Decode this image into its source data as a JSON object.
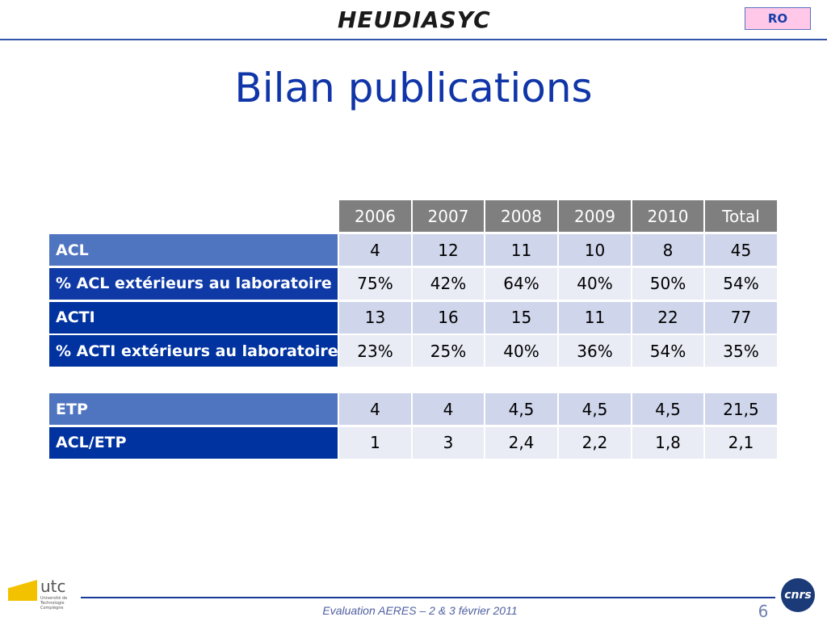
{
  "header": {
    "logo": "HEUDIASYC",
    "badge": "RO"
  },
  "title": "Bilan publications",
  "tables": [
    {
      "columns": [
        "2006",
        "2007",
        "2008",
        "2009",
        "2010",
        "Total"
      ],
      "rows": [
        [
          "ACL",
          "4",
          "12",
          "11",
          "10",
          "8",
          "45"
        ],
        [
          "% ACL extérieurs au laboratoire",
          "75%",
          "42%",
          "64%",
          "40%",
          "50%",
          "54%"
        ],
        [
          "ACTI",
          "13",
          "16",
          "15",
          "11",
          "22",
          "77"
        ],
        [
          "% ACTI extérieurs au laboratoire",
          "23%",
          "25%",
          "40%",
          "36%",
          "54%",
          "35%"
        ]
      ]
    },
    {
      "rows": [
        [
          "ETP",
          "4",
          "4",
          "4,5",
          "4,5",
          "4,5",
          "21,5"
        ],
        [
          "ACL/ETP",
          "1",
          "3",
          "2,4",
          "2,2",
          "1,8",
          "2,1"
        ]
      ]
    }
  ],
  "footer": {
    "left_logo": "utc",
    "left_logo_sub": "Université de Technologie Compiègne",
    "text": "Evaluation AERES – 2 & 3 février 2011",
    "page": "6",
    "right_logo": "cnrs"
  }
}
